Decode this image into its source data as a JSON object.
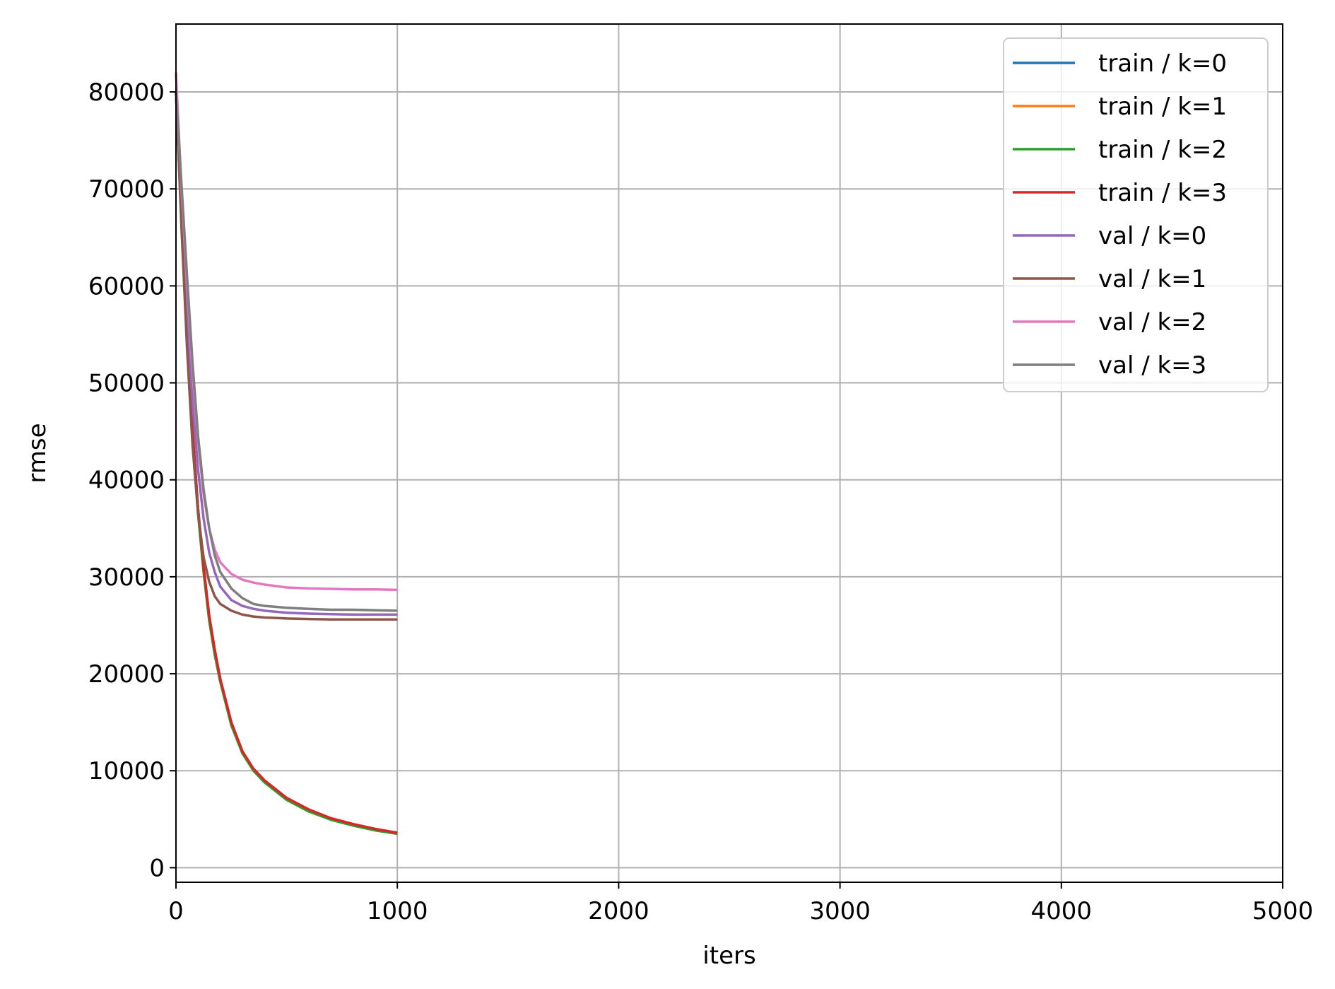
{
  "chart_data": {
    "type": "line",
    "title": "",
    "xlabel": "iters",
    "ylabel": "rmse",
    "xlim": [
      0,
      5000
    ],
    "ylim": [
      -1500,
      87000
    ],
    "grid": true,
    "legend_position": "top-right",
    "x_ticks": [
      0,
      1000,
      2000,
      3000,
      4000,
      5000
    ],
    "x_tick_labels": [
      "0",
      "1000",
      "2000",
      "3000",
      "4000",
      "5000"
    ],
    "y_ticks": [
      0,
      10000,
      20000,
      30000,
      40000,
      50000,
      60000,
      70000,
      80000
    ],
    "y_tick_labels": [
      "0",
      "10000",
      "20000",
      "30000",
      "40000",
      "50000",
      "60000",
      "70000",
      "80000"
    ],
    "x": [
      0,
      25,
      50,
      75,
      100,
      125,
      150,
      175,
      200,
      250,
      300,
      350,
      400,
      500,
      600,
      700,
      800,
      900,
      1000
    ],
    "series": [
      {
        "name": "train / k=0",
        "color": "#1f77b4",
        "values": [
          80000,
          67000,
          55000,
          45000,
          37000,
          31000,
          26000,
          22500,
          19500,
          15000,
          12000,
          10200,
          9000,
          7200,
          6000,
          5100,
          4500,
          4000,
          3600
        ]
      },
      {
        "name": "train / k=1",
        "color": "#ff7f0e",
        "values": [
          80000,
          66500,
          54500,
          44500,
          36500,
          30500,
          25500,
          22000,
          19200,
          14700,
          11800,
          10000,
          8800,
          7000,
          5800,
          4950,
          4350,
          3850,
          3500
        ]
      },
      {
        "name": "train / k=2",
        "color": "#2ca02c",
        "values": [
          80000,
          66500,
          54500,
          44500,
          36500,
          30500,
          25500,
          22000,
          19200,
          14700,
          11800,
          10000,
          8800,
          7000,
          5800,
          4950,
          4350,
          3850,
          3500
        ]
      },
      {
        "name": "train / k=3",
        "color": "#d62728",
        "values": [
          80000,
          67000,
          55000,
          45000,
          37000,
          31000,
          26000,
          22500,
          19500,
          15000,
          12000,
          10200,
          9000,
          7200,
          6000,
          5100,
          4500,
          4000,
          3600
        ]
      },
      {
        "name": "val / k=0",
        "color": "#9467bd",
        "values": [
          80000,
          68000,
          57000,
          48000,
          41000,
          36000,
          32500,
          30500,
          29000,
          27600,
          27000,
          26700,
          26500,
          26300,
          26200,
          26150,
          26100,
          26100,
          26100
        ]
      },
      {
        "name": "val / k=1",
        "color": "#8c564b",
        "values": [
          80000,
          66000,
          53500,
          43500,
          36500,
          32000,
          29500,
          28000,
          27200,
          26500,
          26100,
          25900,
          25800,
          25700,
          25650,
          25600,
          25600,
          25600,
          25600
        ]
      },
      {
        "name": "val / k=2",
        "color": "#e377c2",
        "values": [
          82000,
          70000,
          60000,
          51000,
          44000,
          38500,
          35000,
          32800,
          31500,
          30300,
          29700,
          29400,
          29200,
          28900,
          28800,
          28750,
          28700,
          28700,
          28650
        ]
      },
      {
        "name": "val / k=3",
        "color": "#7f7f7f",
        "values": [
          80000,
          70500,
          61000,
          52000,
          44500,
          39000,
          35000,
          32200,
          30500,
          28800,
          27800,
          27200,
          27000,
          26800,
          26700,
          26600,
          26600,
          26550,
          26500
        ]
      }
    ]
  }
}
